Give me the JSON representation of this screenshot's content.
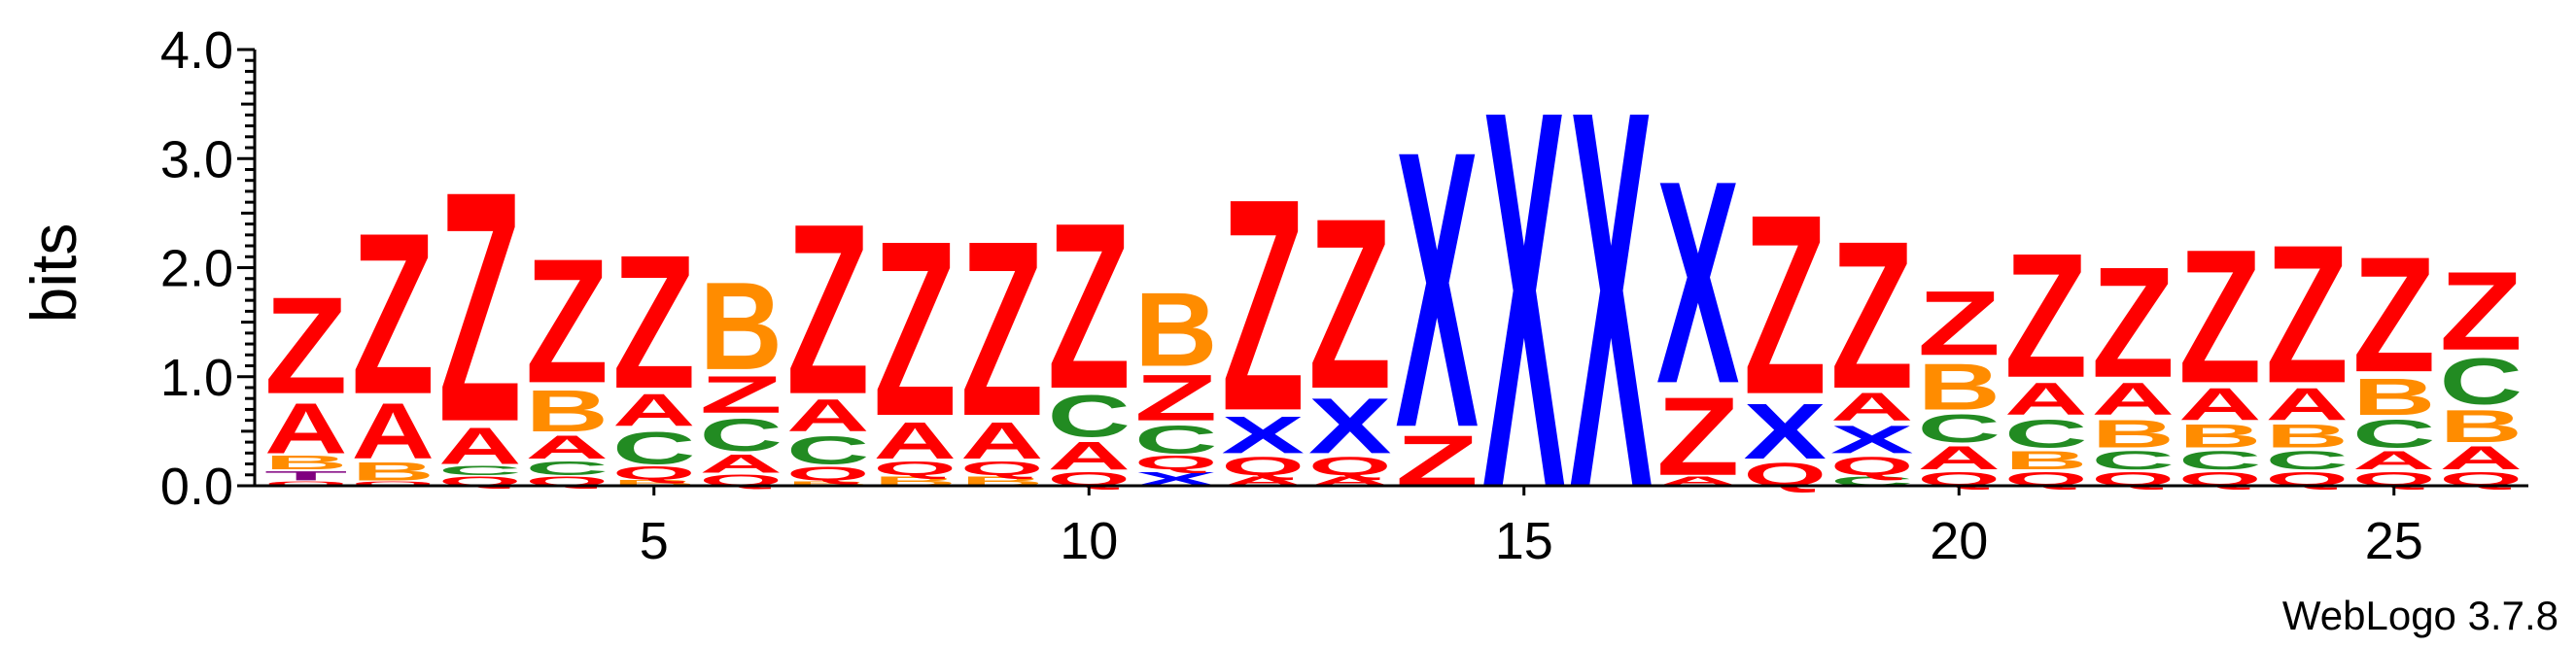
{
  "chart_data": {
    "type": "sequence-logo",
    "ylabel": "bits",
    "ylim": [
      0,
      4.0
    ],
    "y_ticks": [
      "0.0",
      "1.0",
      "2.0",
      "3.0",
      "4.0"
    ],
    "x_ticks": [
      "5",
      "10",
      "15",
      "20",
      "25"
    ],
    "x_tick_positions": [
      5,
      10,
      15,
      20,
      25
    ],
    "positions": [
      {
        "pos": 1,
        "stack": [
          [
            "Q",
            0.05
          ],
          [
            "T",
            0.1
          ],
          [
            "B",
            0.15
          ],
          [
            "A",
            0.55
          ],
          [
            "Z",
            1.05
          ]
        ]
      },
      {
        "pos": 2,
        "stack": [
          [
            "Q",
            0.05
          ],
          [
            "B",
            0.2
          ],
          [
            "A",
            0.6
          ],
          [
            "Z",
            1.75
          ]
        ]
      },
      {
        "pos": 3,
        "stack": [
          [
            "Q",
            0.1
          ],
          [
            "C",
            0.1
          ],
          [
            "A",
            0.4
          ],
          [
            "Z",
            2.5
          ]
        ]
      },
      {
        "pos": 4,
        "stack": [
          [
            "Q",
            0.1
          ],
          [
            "C",
            0.15
          ],
          [
            "A",
            0.25
          ],
          [
            "B",
            0.45
          ],
          [
            "Z",
            1.35
          ]
        ]
      },
      {
        "pos": 5,
        "stack": [
          [
            "B",
            0.06
          ],
          [
            "Q",
            0.14
          ],
          [
            "C",
            0.35
          ],
          [
            "A",
            0.35
          ],
          [
            "Z",
            1.45
          ]
        ]
      },
      {
        "pos": 6,
        "stack": [
          [
            "Q",
            0.12
          ],
          [
            "A",
            0.2
          ],
          [
            "C",
            0.35
          ],
          [
            "Z",
            0.4
          ],
          [
            "B",
            0.95
          ]
        ]
      },
      {
        "pos": 7,
        "stack": [
          [
            "B",
            0.05
          ],
          [
            "Q",
            0.15
          ],
          [
            "C",
            0.3
          ],
          [
            "A",
            0.35
          ],
          [
            "Z",
            1.85
          ]
        ]
      },
      {
        "pos": 8,
        "stack": [
          [
            "B",
            0.1
          ],
          [
            "Q",
            0.15
          ],
          [
            "A",
            0.4
          ],
          [
            "Z",
            1.9
          ]
        ]
      },
      {
        "pos": 9,
        "stack": [
          [
            "B",
            0.1
          ],
          [
            "Q",
            0.15
          ],
          [
            "A",
            0.4
          ],
          [
            "Z",
            1.9
          ]
        ]
      },
      {
        "pos": 10,
        "stack": [
          [
            "Q",
            0.15
          ],
          [
            "A",
            0.3
          ],
          [
            "C",
            0.45
          ],
          [
            "Z",
            1.8
          ]
        ]
      },
      {
        "pos": 11,
        "stack": [
          [
            "X",
            0.15
          ],
          [
            "Q",
            0.15
          ],
          [
            "C",
            0.3
          ],
          [
            "Z",
            0.5
          ],
          [
            "B",
            0.8
          ]
        ]
      },
      {
        "pos": 12,
        "stack": [
          [
            "A",
            0.1
          ],
          [
            "Q",
            0.2
          ],
          [
            "X",
            0.4
          ],
          [
            "Z",
            2.3
          ]
        ]
      },
      {
        "pos": 13,
        "stack": [
          [
            "A",
            0.1
          ],
          [
            "Q",
            0.2
          ],
          [
            "X",
            0.6
          ],
          [
            "Z",
            1.85
          ]
        ]
      },
      {
        "pos": 14,
        "stack": [
          [
            "Z",
            0.55
          ],
          [
            "X",
            3.0
          ]
        ]
      },
      {
        "pos": 15,
        "stack": [
          [
            "X",
            4.1
          ]
        ]
      },
      {
        "pos": 16,
        "stack": [
          [
            "X",
            4.1
          ]
        ]
      },
      {
        "pos": 17,
        "stack": [
          [
            "A",
            0.1
          ],
          [
            "Z",
            0.85
          ],
          [
            "X",
            2.2
          ]
        ]
      },
      {
        "pos": 18,
        "stack": [
          [
            "Q",
            0.25
          ],
          [
            "X",
            0.6
          ],
          [
            "Z",
            1.95
          ]
        ]
      },
      {
        "pos": 19,
        "stack": [
          [
            "C",
            0.1
          ],
          [
            "Q",
            0.2
          ],
          [
            "X",
            0.3
          ],
          [
            "A",
            0.3
          ],
          [
            "Z",
            1.6
          ]
        ]
      },
      {
        "pos": 20,
        "stack": [
          [
            "Q",
            0.15
          ],
          [
            "A",
            0.25
          ],
          [
            "C",
            0.3
          ],
          [
            "B",
            0.5
          ],
          [
            "Z",
            0.7
          ]
        ]
      },
      {
        "pos": 21,
        "stack": [
          [
            "Q",
            0.15
          ],
          [
            "B",
            0.2
          ],
          [
            "C",
            0.3
          ],
          [
            "A",
            0.35
          ],
          [
            "Z",
            1.35
          ]
        ]
      },
      {
        "pos": 22,
        "stack": [
          [
            "Q",
            0.15
          ],
          [
            "C",
            0.2
          ],
          [
            "B",
            0.3
          ],
          [
            "A",
            0.35
          ],
          [
            "Z",
            1.2
          ]
        ]
      },
      {
        "pos": 23,
        "stack": [
          [
            "Q",
            0.15
          ],
          [
            "C",
            0.2
          ],
          [
            "B",
            0.25
          ],
          [
            "A",
            0.35
          ],
          [
            "Z",
            1.45
          ]
        ]
      },
      {
        "pos": 24,
        "stack": [
          [
            "Q",
            0.15
          ],
          [
            "C",
            0.2
          ],
          [
            "B",
            0.25
          ],
          [
            "A",
            0.35
          ],
          [
            "Z",
            1.5
          ]
        ]
      },
      {
        "pos": 25,
        "stack": [
          [
            "Q",
            0.15
          ],
          [
            "A",
            0.2
          ],
          [
            "C",
            0.3
          ],
          [
            "B",
            0.4
          ],
          [
            "Z",
            1.25
          ]
        ]
      },
      {
        "pos": 26,
        "stack": [
          [
            "Q",
            0.15
          ],
          [
            "A",
            0.25
          ],
          [
            "B",
            0.35
          ],
          [
            "C",
            0.5
          ],
          [
            "Z",
            0.85
          ]
        ]
      }
    ],
    "colors": {
      "Z": "#ff0000",
      "A": "#ff0000",
      "Q": "#ff0000",
      "X": "#0000ff",
      "B": "#ff8c00",
      "C": "#228b22",
      "T": "#800080"
    },
    "grid": false
  },
  "credit": "WebLogo 3.7.8"
}
